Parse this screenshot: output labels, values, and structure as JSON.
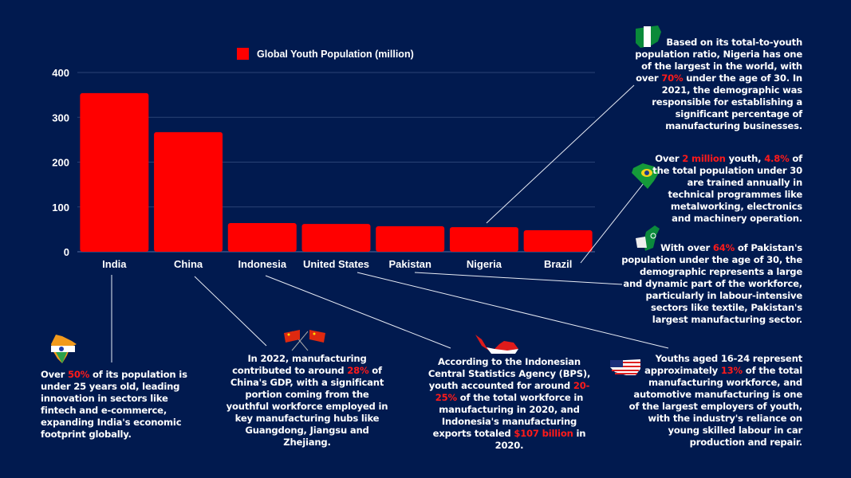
{
  "chart_data": {
    "type": "bar",
    "categories": [
      "India",
      "China",
      "Indonesia",
      "United States",
      "Pakistan",
      "Nigeria",
      "Brazil"
    ],
    "series": [
      {
        "name": "Global Youth Population (million)",
        "values": [
          354,
          267,
          64,
          62,
          57,
          55,
          48
        ],
        "color": "#ff0000"
      }
    ],
    "ylim": [
      0,
      400
    ],
    "yticks": [
      "0",
      "100",
      "200",
      "300",
      "400"
    ],
    "grid": true,
    "legend": "top-center"
  },
  "annotations": {
    "nigeria": {
      "icon": "nigeria-map-icon",
      "pre": "Based on its total-to-youth population ratio, Nigeria has one of the largest in the world, with over ",
      "hl": "70%",
      "post": " under the age of 30.  In 2021, the demographic was responsible for establishing a significant percentage of manufacturing businesses."
    },
    "brazil": {
      "icon": "brazil-map-icon",
      "pre": "Over ",
      "hl": "2 million",
      "mid": " youth, ",
      "hl2": "4.8%",
      "post": " of the total population under 30 are trained annually in technical programmes like metalworking, electronics and machinery operation."
    },
    "pakistan": {
      "icon": "pakistan-map-icon",
      "pre": "With over ",
      "hl": "64%",
      "post": " of Pakistan's population under the age of 30, the demographic represents a large and dynamic part of the workforce, particularly in labour-intensive sectors like textile, Pakistan's largest manufacturing sector."
    },
    "india": {
      "icon": "india-map-icon",
      "pre": "Over ",
      "hl": "50%",
      "post": " of its population is under 25 years old, leading innovation in sectors like fintech and e-commerce, expanding India's economic footprint globally."
    },
    "china": {
      "icon": "china-flags-icon",
      "pre": "In 2022, manufacturing contributed to around ",
      "hl": "28%",
      "post": " of China's GDP, with a significant portion coming from the youthful workforce employed in key manufacturing hubs like Guangdong, Jiangsu and Zhejiang."
    },
    "indonesia": {
      "icon": "indonesia-map-icon",
      "pre": "According to the Indonesian Central Statistics Agency (BPS), youth accounted for around ",
      "hl": "20-25%",
      "mid": " of the total workforce in manufacturing in 2020, and Indonesia's manufacturing exports totaled ",
      "hl2": "$107 billion",
      "post": " in 2020."
    },
    "united_states": {
      "icon": "usa-map-icon",
      "pre": "Youths aged 16-24 represent approximately ",
      "hl": "13%",
      "post": " of the total manufacturing workforce, and automotive manufacturing is one of the largest employers of youth, with the industry's reliance on young skilled labour in car production and repair."
    }
  },
  "colors": {
    "background": "#011a4f",
    "bar": "#ff0000",
    "highlight": "#ff1a1a",
    "text": "#ffffff"
  }
}
